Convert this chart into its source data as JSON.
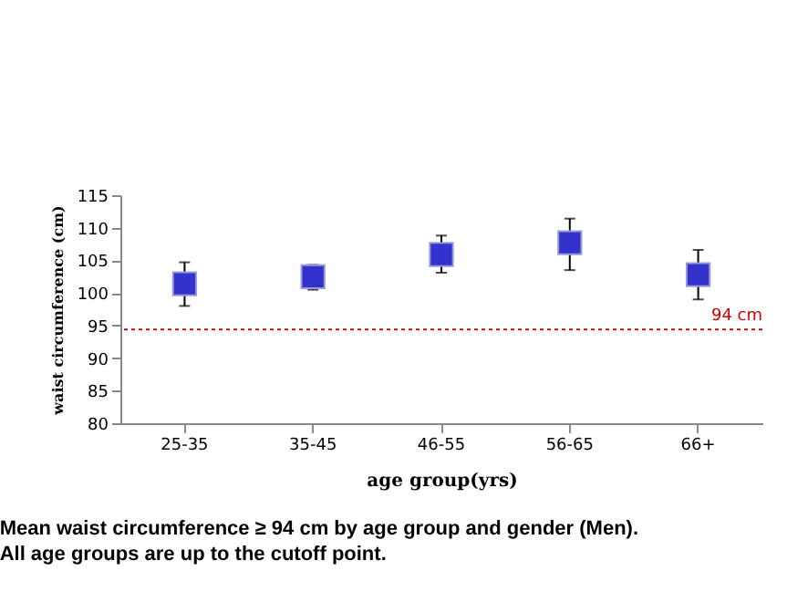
{
  "chart_data": {
    "type": "scatter",
    "xlabel": "age group(yrs)",
    "ylabel": "waist circumference (cm)",
    "categories": [
      "25-35",
      "35-45",
      "46-55",
      "56-65",
      "66+"
    ],
    "series": [
      {
        "color": "#3333cc",
        "values": [
          101.4,
          102.5,
          105.9,
          107.7,
          102.8
        ],
        "errors": [
          [
            98.0,
            104.7
          ],
          [
            100.5,
            104.3
          ],
          [
            103.1,
            108.8
          ],
          [
            103.5,
            111.4
          ],
          [
            99.0,
            106.6
          ]
        ]
      }
    ],
    "ylim": [
      80,
      115
    ],
    "yticks": [
      80,
      85,
      90,
      95,
      100,
      105,
      110,
      115
    ],
    "marker": "square",
    "grid": false,
    "ref_lines": [
      {
        "axis": "y",
        "value": 94.4,
        "label": "94 cm",
        "color": "#cc0000",
        "line_style": "dotted"
      }
    ],
    "annotations": [
      "Mean waist circumference ≥ 94 cm by age group and gender (Men).",
      "All age groups are up to the cutoff point."
    ]
  }
}
